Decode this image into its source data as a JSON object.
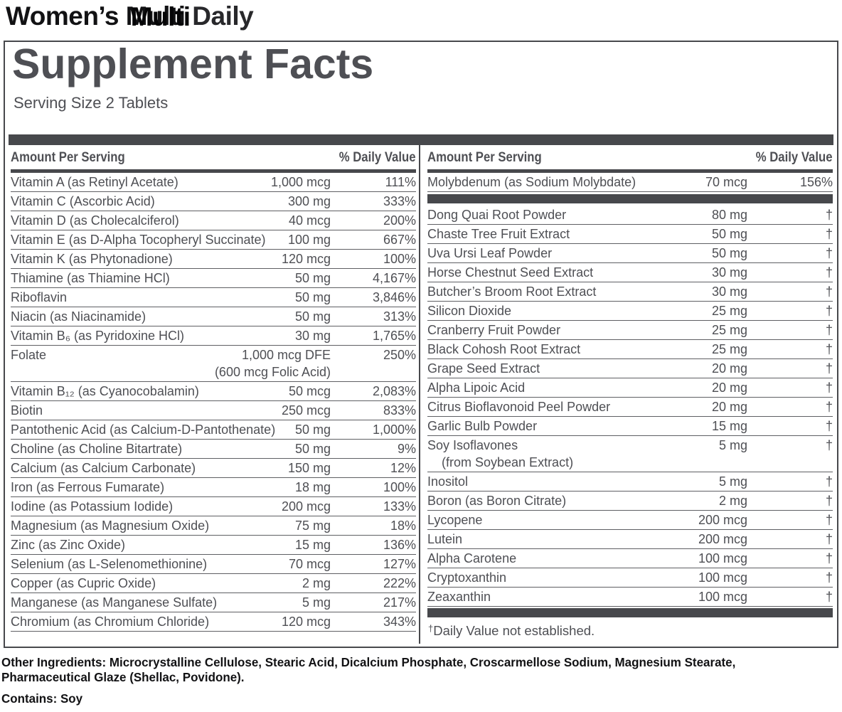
{
  "title": {
    "word1": "Women’s ",
    "word2": "Multi",
    "word2_ghost": "Multi",
    "word3": " Daily"
  },
  "facts": {
    "title": "Supplement Facts",
    "serving_size": "Serving Size 2 Tablets"
  },
  "table": {
    "header": {
      "amount_label": "Amount Per Serving",
      "dv_label": "% Daily Value"
    },
    "left_rows": [
      {
        "name": "Vitamin A (as Retinyl Acetate)",
        "amount": "1,000 mcg",
        "dv": "111%"
      },
      {
        "name": "Vitamin C (Ascorbic Acid)",
        "amount": "300 mg",
        "dv": "333%"
      },
      {
        "name": "Vitamin D (as Cholecalciferol)",
        "amount": "40 mcg",
        "dv": "200%"
      },
      {
        "name": "Vitamin E (as D-Alpha Tocopheryl Succinate)",
        "amount": "100 mg",
        "dv": "667%"
      },
      {
        "name": "Vitamin K (as Phytonadione)",
        "amount": "120 mcg",
        "dv": "100%"
      },
      {
        "name": "Thiamine (as Thiamine HCl)",
        "amount": "50 mg",
        "dv": "4,167%"
      },
      {
        "name": "Riboflavin",
        "amount": "50 mg",
        "dv": "3,846%"
      },
      {
        "name": "Niacin (as Niacinamide)",
        "amount": "50 mg",
        "dv": "313%"
      },
      {
        "name": "Vitamin B₆ (as Pyridoxine HCl)",
        "amount": "30 mg",
        "dv": "1,765%"
      },
      {
        "name": "Folate",
        "amount": "1,000 mcg DFE\n(600 mcg Folic Acid)",
        "dv": "250%"
      },
      {
        "name": "Vitamin B₁₂ (as Cyanocobalamin)",
        "amount": "50 mcg",
        "dv": "2,083%"
      },
      {
        "name": "Biotin",
        "amount": "250 mcg",
        "dv": "833%"
      },
      {
        "name": "Pantothenic Acid (as Calcium-D-Pantothenate)",
        "amount": "50 mg",
        "dv": "1,000%"
      },
      {
        "name": "Choline (as Choline Bitartrate)",
        "amount": "50 mg",
        "dv": "9%"
      },
      {
        "name": "Calcium (as Calcium Carbonate)",
        "amount": "150 mg",
        "dv": "12%"
      },
      {
        "name": "Iron (as Ferrous Fumarate)",
        "amount": "18 mg",
        "dv": "100%"
      },
      {
        "name": "Iodine (as Potassium Iodide)",
        "amount": "200 mcg",
        "dv": "133%"
      },
      {
        "name": "Magnesium (as Magnesium Oxide)",
        "amount": "75 mg",
        "dv": "18%"
      },
      {
        "name": "Zinc (as Zinc Oxide)",
        "amount": "15 mg",
        "dv": "136%"
      },
      {
        "name": "Selenium (as L-Selenomethionine)",
        "amount": "70 mcg",
        "dv": "127%"
      },
      {
        "name": "Copper (as Cupric Oxide)",
        "amount": "2 mg",
        "dv": "222%"
      },
      {
        "name": "Manganese (as Manganese Sulfate)",
        "amount": "5 mg",
        "dv": "217%"
      },
      {
        "name": "Chromium (as Chromium Chloride)",
        "amount": "120 mcg",
        "dv": "343%"
      }
    ],
    "right_top_rows": [
      {
        "name": "Molybdenum (as Sodium Molybdate)",
        "amount": "70 mcg",
        "dv": "156%"
      }
    ],
    "right_rows": [
      {
        "name": "Dong Quai Root Powder",
        "amount": "80 mg",
        "dv": "†"
      },
      {
        "name": "Chaste Tree Fruit Extract",
        "amount": "50 mg",
        "dv": "†"
      },
      {
        "name": "Uva Ursi Leaf Powder",
        "amount": "50 mg",
        "dv": "†"
      },
      {
        "name": "Horse Chestnut Seed Extract",
        "amount": "30 mg",
        "dv": "†"
      },
      {
        "name": "Butcher’s Broom Root Extract",
        "amount": "30 mg",
        "dv": "†"
      },
      {
        "name": "Silicon Dioxide",
        "amount": "25 mg",
        "dv": "†"
      },
      {
        "name": "Cranberry Fruit Powder",
        "amount": "25 mg",
        "dv": "†"
      },
      {
        "name": "Black Cohosh Root Extract",
        "amount": "25 mg",
        "dv": "†"
      },
      {
        "name": "Grape Seed Extract",
        "amount": "20 mg",
        "dv": "†"
      },
      {
        "name": "Alpha Lipoic Acid",
        "amount": "20 mg",
        "dv": "†"
      },
      {
        "name": "Citrus Bioflavonoid Peel Powder",
        "amount": "20 mg",
        "dv": "†"
      },
      {
        "name": "Garlic Bulb Powder",
        "amount": "15 mg",
        "dv": "†"
      },
      {
        "name": "Soy Isoflavones\n    (from Soybean Extract)",
        "amount": "5 mg",
        "dv": "†"
      },
      {
        "name": "Inositol",
        "amount": "5 mg",
        "dv": "†"
      },
      {
        "name": "Boron (as Boron Citrate)",
        "amount": "2 mg",
        "dv": "†"
      },
      {
        "name": "Lycopene",
        "amount": "200 mcg",
        "dv": "†"
      },
      {
        "name": "Lutein",
        "amount": "200 mcg",
        "dv": "†"
      },
      {
        "name": "Alpha Carotene",
        "amount": "100 mcg",
        "dv": "†"
      },
      {
        "name": "Cryptoxanthin",
        "amount": "100 mcg",
        "dv": "†"
      },
      {
        "name": "Zeaxanthin",
        "amount": "100 mcg",
        "dv": "†"
      }
    ],
    "footnote_dagger": "†",
    "footnote_text": "Daily Value not established."
  },
  "footer": {
    "other_ingredients": "Other Ingredients: Microcrystalline Cellulose, Stearic Acid, Dicalcium Phosphate, Croscarmellose Sodium, Magnesium Stearate,\nPharmaceutical Glaze (Shellac, Povidone).",
    "contains": "Contains: Soy"
  },
  "colors": {
    "ink": "#4e4f54",
    "bar": "#47484c",
    "rule": "#5e5f63",
    "black": "#121214"
  }
}
